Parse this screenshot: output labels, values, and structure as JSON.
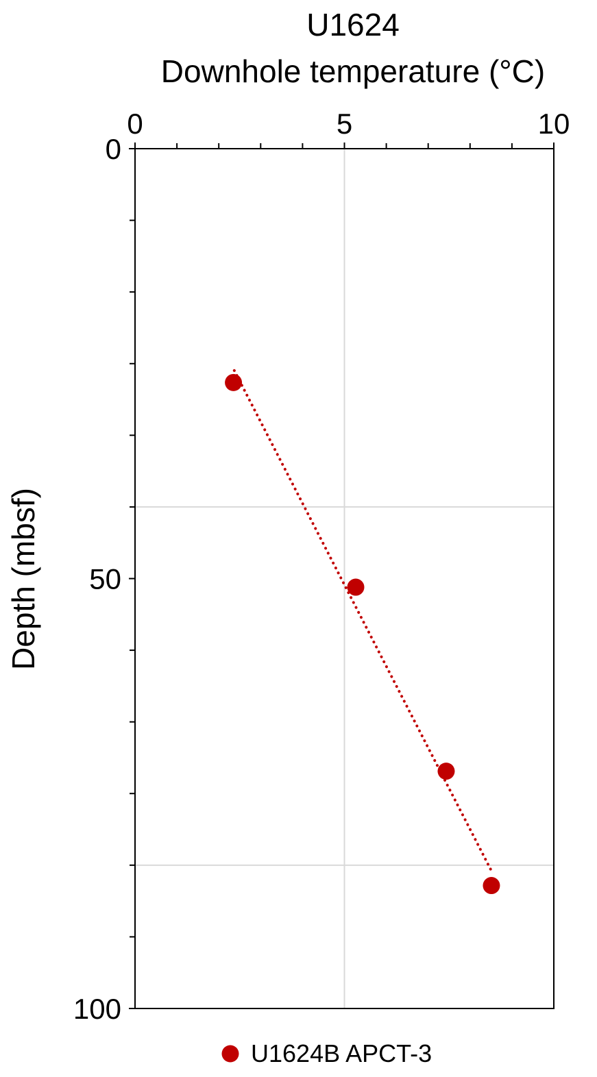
{
  "chart_data": {
    "type": "scatter",
    "title": "U1624",
    "xlabel": "Downhole temperature (°C)",
    "ylabel": "Depth (mbsf)",
    "xlim": [
      0,
      10
    ],
    "ylim": [
      0,
      100
    ],
    "y_inverted": true,
    "x_axis_position": "top",
    "xticks": [
      0,
      5,
      10
    ],
    "yticks": [
      0,
      50,
      100
    ],
    "xminorticks": [
      1,
      2,
      3,
      4,
      6,
      7,
      8,
      9
    ],
    "yminorticks": [
      8.333,
      16.667,
      25,
      33.333,
      41.667,
      58.333,
      66.667,
      75,
      83.333,
      91.667
    ],
    "xgrid": [
      5
    ],
    "ygrid": [
      41.667,
      83.333
    ],
    "series": [
      {
        "name": "U1624B APCT-3",
        "color": "#c00000",
        "x": [
          2.35,
          5.27,
          7.43,
          8.51
        ],
        "values": [
          27.2,
          51.0,
          72.4,
          85.7
        ]
      }
    ],
    "trendline": {
      "color": "#c00000",
      "x": [
        2.37,
        8.49
      ],
      "values": [
        25.8,
        83.8
      ]
    },
    "legend": "bottom"
  }
}
